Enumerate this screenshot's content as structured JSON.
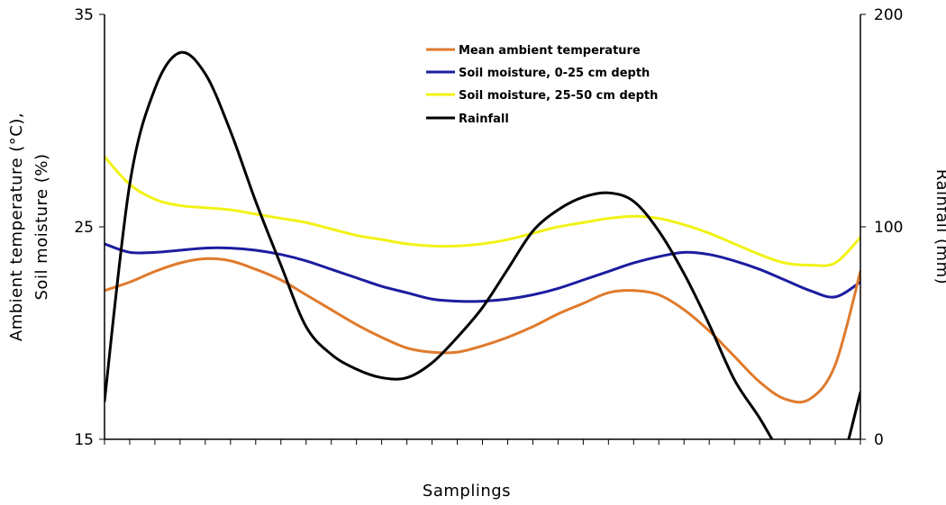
{
  "chart_data": {
    "type": "line",
    "xlabel": "Samplings",
    "ylabel_left": [
      "Ambient temperature (°C),",
      "Soil moisture (%)"
    ],
    "ylabel_right": "Rainfall (mm)",
    "ylim_left": [
      15,
      35
    ],
    "ylim_right": [
      0,
      200
    ],
    "yticks_left": [
      "15",
      "25",
      "35"
    ],
    "yticks_right": [
      "0",
      "100",
      "200"
    ],
    "x_tick_count": 31,
    "grid": false,
    "legend_position": "top-center",
    "series": [
      {
        "name": "Mean ambient temperature",
        "axis": "left",
        "color": "#e07a2c",
        "x": [
          0,
          1,
          2,
          3,
          4,
          5,
          6,
          7,
          8,
          9,
          10,
          11,
          12,
          13,
          14,
          15,
          16,
          17,
          18,
          19,
          20,
          21,
          22,
          23,
          24,
          25,
          26,
          27,
          28,
          29,
          30
        ],
        "values": [
          22.0,
          22.4,
          22.9,
          23.3,
          23.5,
          23.4,
          23.0,
          22.5,
          21.8,
          21.1,
          20.4,
          19.8,
          19.3,
          19.1,
          19.1,
          19.4,
          19.8,
          20.3,
          20.9,
          21.4,
          21.9,
          22.0,
          21.8,
          21.1,
          20.1,
          18.9,
          17.7,
          16.9,
          16.9,
          18.5,
          22.9
        ]
      },
      {
        "name": "Soil moisture, 0-25 cm depth",
        "axis": "left",
        "color": "#1c1ca0",
        "x": [
          0,
          1,
          2,
          3,
          4,
          5,
          6,
          7,
          8,
          9,
          10,
          11,
          12,
          13,
          14,
          15,
          16,
          17,
          18,
          19,
          20,
          21,
          22,
          23,
          24,
          25,
          26,
          27,
          28,
          29,
          30
        ],
        "values": [
          24.2,
          23.8,
          23.8,
          23.9,
          24.0,
          24.0,
          23.9,
          23.7,
          23.4,
          23.0,
          22.6,
          22.2,
          21.9,
          21.6,
          21.5,
          21.5,
          21.6,
          21.8,
          22.1,
          22.5,
          22.9,
          23.3,
          23.6,
          23.8,
          23.7,
          23.4,
          23.0,
          22.5,
          22.0,
          21.7,
          22.4
        ]
      },
      {
        "name": "Soil moisture, 25-50 cm depth",
        "axis": "left",
        "color": "#f2f216",
        "x": [
          0,
          1,
          2,
          3,
          4,
          5,
          6,
          7,
          8,
          9,
          10,
          11,
          12,
          13,
          14,
          15,
          16,
          17,
          18,
          19,
          20,
          21,
          22,
          23,
          24,
          25,
          26,
          27,
          28,
          29,
          30
        ],
        "values": [
          28.3,
          27.0,
          26.3,
          26.0,
          25.9,
          25.8,
          25.6,
          25.4,
          25.2,
          24.9,
          24.6,
          24.4,
          24.2,
          24.1,
          24.1,
          24.2,
          24.4,
          24.7,
          25.0,
          25.2,
          25.4,
          25.5,
          25.4,
          25.1,
          24.7,
          24.2,
          23.7,
          23.3,
          23.2,
          23.3,
          24.5
        ]
      },
      {
        "name": "Rainfall",
        "axis": "right",
        "color": "#000000",
        "x": [
          0,
          1,
          2,
          3,
          4,
          5,
          6,
          7,
          8,
          9,
          10,
          11,
          12,
          13,
          14,
          15,
          16,
          17,
          18,
          19,
          20,
          21,
          22,
          23,
          24,
          25,
          26,
          27,
          28,
          29,
          30
        ],
        "values": [
          18,
          120,
          165,
          182,
          172,
          145,
          112,
          82,
          53,
          40,
          33,
          29,
          29,
          36,
          48,
          62,
          80,
          98,
          108,
          114,
          116,
          112,
          98,
          78,
          54,
          28,
          10,
          -10,
          -25,
          -20,
          22
        ]
      }
    ]
  }
}
